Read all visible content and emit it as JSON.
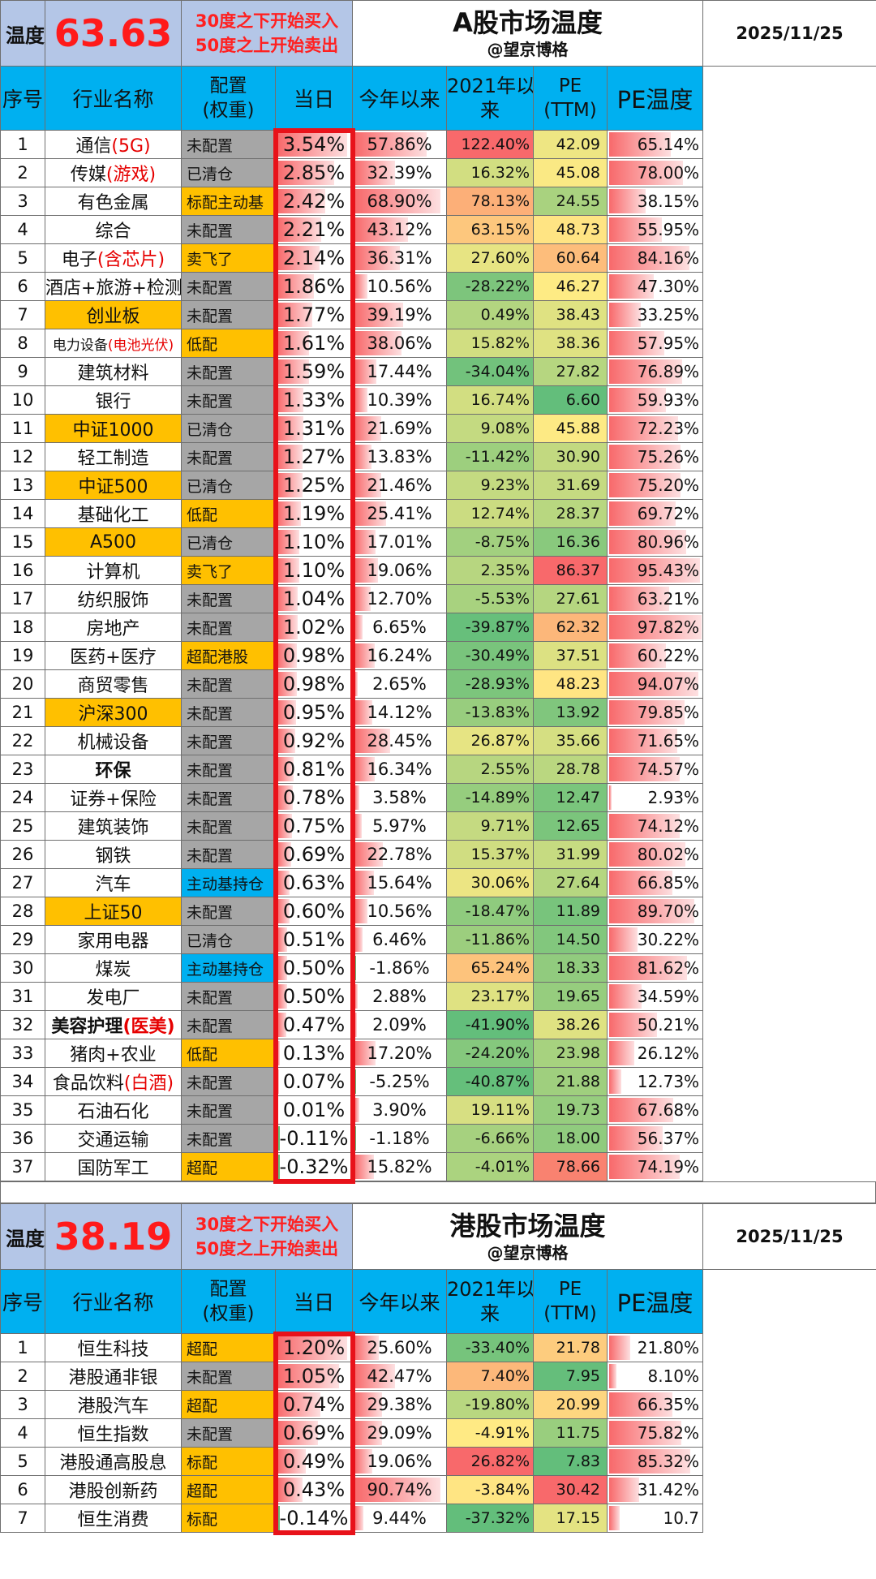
{
  "a_share": {
    "label": "温度",
    "temperature": "63.63",
    "rule_buy": "30度之下开始买入",
    "rule_sell": "50度之上开始卖出",
    "title": "A股市场温度",
    "author": "@望京博格",
    "date": "2025/11/25",
    "columns": [
      "序号",
      "行业名称",
      "配置",
      "(权重)",
      "当日",
      "今年以来",
      "2021年以",
      "来",
      "PE",
      "(TTM)",
      "PE温度"
    ],
    "rows": [
      {
        "idx": "1",
        "name": "通信",
        "sub": "(5G)",
        "cfg": "未配置",
        "day": "3.54%",
        "ytd": "57.86%",
        "since": "122.40%",
        "pe": "42.09",
        "pet": "65.14%"
      },
      {
        "idx": "2",
        "name": "传媒",
        "sub": "(游戏)",
        "cfg": "已清仓",
        "day": "2.85%",
        "ytd": "32.39%",
        "since": "16.32%",
        "pe": "45.08",
        "pet": "78.00%"
      },
      {
        "idx": "3",
        "name": "有色金属",
        "sub": "",
        "cfg": "标配主动基",
        "day": "2.42%",
        "ytd": "68.90%",
        "since": "78.13%",
        "pe": "24.55",
        "pet": "38.15%"
      },
      {
        "idx": "4",
        "name": "综合",
        "sub": "",
        "cfg": "未配置",
        "day": "2.21%",
        "ytd": "43.12%",
        "since": "63.15%",
        "pe": "48.73",
        "pet": "55.95%"
      },
      {
        "idx": "5",
        "name": "电子",
        "sub": "(含芯片)",
        "cfg": "卖飞了",
        "day": "2.14%",
        "ytd": "36.31%",
        "since": "27.60%",
        "pe": "60.64",
        "pet": "84.16%"
      },
      {
        "idx": "6",
        "name": "酒店+旅游+检测",
        "sub": "",
        "cfg": "未配置",
        "day": "1.86%",
        "ytd": "10.56%",
        "since": "-28.22%",
        "pe": "46.27",
        "pet": "47.30%"
      },
      {
        "idx": "7",
        "name": "创业板",
        "sub": "",
        "cfg": "未配置",
        "day": "1.77%",
        "ytd": "39.19%",
        "since": "0.49%",
        "pe": "38.43",
        "pet": "33.25%"
      },
      {
        "idx": "8",
        "name": "电力设备",
        "sub": "(电池光伏)",
        "cfg": "低配",
        "day": "1.61%",
        "ytd": "38.06%",
        "since": "15.82%",
        "pe": "38.36",
        "pet": "57.95%"
      },
      {
        "idx": "9",
        "name": "建筑材料",
        "sub": "",
        "cfg": "未配置",
        "day": "1.59%",
        "ytd": "17.44%",
        "since": "-34.04%",
        "pe": "27.82",
        "pet": "76.89%"
      },
      {
        "idx": "10",
        "name": "银行",
        "sub": "",
        "cfg": "未配置",
        "day": "1.33%",
        "ytd": "10.39%",
        "since": "16.74%",
        "pe": "6.60",
        "pet": "59.93%"
      },
      {
        "idx": "11",
        "name": "中证1000",
        "sub": "",
        "cfg": "已清仓",
        "day": "1.31%",
        "ytd": "21.69%",
        "since": "9.08%",
        "pe": "45.88",
        "pet": "72.23%"
      },
      {
        "idx": "12",
        "name": "轻工制造",
        "sub": "",
        "cfg": "未配置",
        "day": "1.27%",
        "ytd": "13.83%",
        "since": "-11.42%",
        "pe": "30.90",
        "pet": "75.26%"
      },
      {
        "idx": "13",
        "name": "中证500",
        "sub": "",
        "cfg": "已清仓",
        "day": "1.25%",
        "ytd": "21.46%",
        "since": "9.23%",
        "pe": "31.69",
        "pet": "75.20%"
      },
      {
        "idx": "14",
        "name": "基础化工",
        "sub": "",
        "cfg": "低配",
        "day": "1.19%",
        "ytd": "25.41%",
        "since": "12.74%",
        "pe": "28.37",
        "pet": "69.72%"
      },
      {
        "idx": "15",
        "name": "A500",
        "sub": "",
        "cfg": "已清仓",
        "day": "1.10%",
        "ytd": "17.01%",
        "since": "-8.75%",
        "pe": "16.36",
        "pet": "80.96%"
      },
      {
        "idx": "16",
        "name": "计算机",
        "sub": "",
        "cfg": "卖飞了",
        "day": "1.10%",
        "ytd": "19.06%",
        "since": "2.35%",
        "pe": "86.37",
        "pet": "95.43%"
      },
      {
        "idx": "17",
        "name": "纺织服饰",
        "sub": "",
        "cfg": "未配置",
        "day": "1.04%",
        "ytd": "12.70%",
        "since": "-5.53%",
        "pe": "27.61",
        "pet": "63.21%"
      },
      {
        "idx": "18",
        "name": "房地产",
        "sub": "",
        "cfg": "未配置",
        "day": "1.02%",
        "ytd": "6.65%",
        "since": "-39.87%",
        "pe": "62.32",
        "pet": "97.82%"
      },
      {
        "idx": "19",
        "name": "医药+医疗",
        "sub": "",
        "cfg": "超配港股",
        "day": "0.98%",
        "ytd": "16.24%",
        "since": "-30.49%",
        "pe": "37.51",
        "pet": "60.22%"
      },
      {
        "idx": "20",
        "name": "商贸零售",
        "sub": "",
        "cfg": "未配置",
        "day": "0.98%",
        "ytd": "2.65%",
        "since": "-28.93%",
        "pe": "48.23",
        "pet": "94.07%"
      },
      {
        "idx": "21",
        "name": "沪深300",
        "sub": "",
        "cfg": "未配置",
        "day": "0.95%",
        "ytd": "14.12%",
        "since": "-13.83%",
        "pe": "13.92",
        "pet": "79.85%"
      },
      {
        "idx": "22",
        "name": "机械设备",
        "sub": "",
        "cfg": "未配置",
        "day": "0.92%",
        "ytd": "28.45%",
        "since": "26.87%",
        "pe": "35.66",
        "pet": "71.65%"
      },
      {
        "idx": "23",
        "name": "环保",
        "sub": "",
        "cfg": "未配置",
        "day": "0.81%",
        "ytd": "16.34%",
        "since": "2.55%",
        "pe": "28.78",
        "pet": "74.57%"
      },
      {
        "idx": "24",
        "name": "证券+保险",
        "sub": "",
        "cfg": "未配置",
        "day": "0.78%",
        "ytd": "3.58%",
        "since": "-14.89%",
        "pe": "12.47",
        "pet": "2.93%"
      },
      {
        "idx": "25",
        "name": "建筑装饰",
        "sub": "",
        "cfg": "未配置",
        "day": "0.75%",
        "ytd": "5.97%",
        "since": "9.71%",
        "pe": "12.65",
        "pet": "74.12%"
      },
      {
        "idx": "26",
        "name": "钢铁",
        "sub": "",
        "cfg": "未配置",
        "day": "0.69%",
        "ytd": "22.78%",
        "since": "15.37%",
        "pe": "31.99",
        "pet": "80.02%"
      },
      {
        "idx": "27",
        "name": "汽车",
        "sub": "",
        "cfg": "主动基持仓",
        "day": "0.63%",
        "ytd": "15.64%",
        "since": "30.06%",
        "pe": "27.64",
        "pet": "66.85%"
      },
      {
        "idx": "28",
        "name": "上证50",
        "sub": "",
        "cfg": "未配置",
        "day": "0.60%",
        "ytd": "10.56%",
        "since": "-18.47%",
        "pe": "11.89",
        "pet": "89.70%"
      },
      {
        "idx": "29",
        "name": "家用电器",
        "sub": "",
        "cfg": "已清仓",
        "day": "0.51%",
        "ytd": "6.46%",
        "since": "-11.86%",
        "pe": "14.50",
        "pet": "30.22%"
      },
      {
        "idx": "30",
        "name": "煤炭",
        "sub": "",
        "cfg": "主动基持仓",
        "day": "0.50%",
        "ytd": "-1.86%",
        "since": "65.24%",
        "pe": "18.33",
        "pet": "81.62%"
      },
      {
        "idx": "31",
        "name": "发电厂",
        "sub": "",
        "cfg": "未配置",
        "day": "0.50%",
        "ytd": "2.88%",
        "since": "23.17%",
        "pe": "19.65",
        "pet": "34.59%"
      },
      {
        "idx": "32",
        "name": "美容护理",
        "sub": "(医美)",
        "cfg": "未配置",
        "day": "0.47%",
        "ytd": "2.09%",
        "since": "-41.90%",
        "pe": "38.26",
        "pet": "50.21%"
      },
      {
        "idx": "33",
        "name": "猪肉+农业",
        "sub": "",
        "cfg": "低配",
        "day": "0.13%",
        "ytd": "17.20%",
        "since": "-24.20%",
        "pe": "23.98",
        "pet": "26.12%"
      },
      {
        "idx": "34",
        "name": "食品饮料",
        "sub": "(白酒)",
        "cfg": "未配置",
        "day": "0.07%",
        "ytd": "-5.25%",
        "since": "-40.87%",
        "pe": "21.88",
        "pet": "12.73%"
      },
      {
        "idx": "35",
        "name": "石油石化",
        "sub": "",
        "cfg": "未配置",
        "day": "0.01%",
        "ytd": "3.90%",
        "since": "19.11%",
        "pe": "19.73",
        "pet": "67.68%"
      },
      {
        "idx": "36",
        "name": "交通运输",
        "sub": "",
        "cfg": "未配置",
        "day": "-0.11%",
        "ytd": "-1.18%",
        "since": "-6.66%",
        "pe": "18.00",
        "pet": "56.37%"
      },
      {
        "idx": "37",
        "name": "国防军工",
        "sub": "",
        "cfg": "超配",
        "day": "-0.32%",
        "ytd": "15.82%",
        "since": "-4.01%",
        "pe": "78.66",
        "pet": "74.19%"
      }
    ]
  },
  "hk_share": {
    "label": "温度",
    "temperature": "38.19",
    "rule_buy": "30度之下开始买入",
    "rule_sell": "50度之上开始卖出",
    "title": "港股市场温度",
    "author": "@望京博格",
    "date": "2025/11/25",
    "columns": [
      "序号",
      "行业名称",
      "配置",
      "(权重)",
      "当日",
      "今年以来",
      "2021年以",
      "来",
      "PE",
      "(TTM)",
      "PE温度"
    ],
    "rows": [
      {
        "idx": "1",
        "name": "恒生科技",
        "sub": "",
        "cfg": "超配",
        "day": "1.20%",
        "ytd": "25.60%",
        "since": "-33.40%",
        "pe": "21.78",
        "pet": "21.80%"
      },
      {
        "idx": "2",
        "name": "港股通非银",
        "sub": "",
        "cfg": "未配置",
        "day": "1.05%",
        "ytd": "42.47%",
        "since": "7.40%",
        "pe": "7.95",
        "pet": "8.10%"
      },
      {
        "idx": "3",
        "name": "港股汽车",
        "sub": "",
        "cfg": "超配",
        "day": "0.74%",
        "ytd": "29.38%",
        "since": "-19.80%",
        "pe": "20.99",
        "pet": "66.35%"
      },
      {
        "idx": "4",
        "name": "恒生指数",
        "sub": "",
        "cfg": "未配置",
        "day": "0.69%",
        "ytd": "29.09%",
        "since": "-4.91%",
        "pe": "11.75",
        "pet": "75.82%"
      },
      {
        "idx": "5",
        "name": "港股通高股息",
        "sub": "",
        "cfg": "标配",
        "day": "0.49%",
        "ytd": "19.06%",
        "since": "26.82%",
        "pe": "7.83",
        "pet": "85.32%"
      },
      {
        "idx": "6",
        "name": "港股创新药",
        "sub": "",
        "cfg": "超配",
        "day": "0.43%",
        "ytd": "90.74%",
        "since": "-3.84%",
        "pe": "30.42",
        "pet": "31.42%"
      },
      {
        "idx": "7",
        "name": "恒生消费",
        "sub": "",
        "cfg": "标配",
        "day": "-0.14%",
        "ytd": "9.44%",
        "since": "-37.32%",
        "pe": "17.15",
        "pet": "10.7"
      }
    ]
  },
  "colors": {
    "header_blue": "#00b0f0",
    "temp_bg": "#b4c6e7",
    "highlight_gold": "#ffc000",
    "config_gray": "#a6a6a6",
    "alert_red": "#ff1a1a",
    "bar_red": "#f8696b"
  }
}
